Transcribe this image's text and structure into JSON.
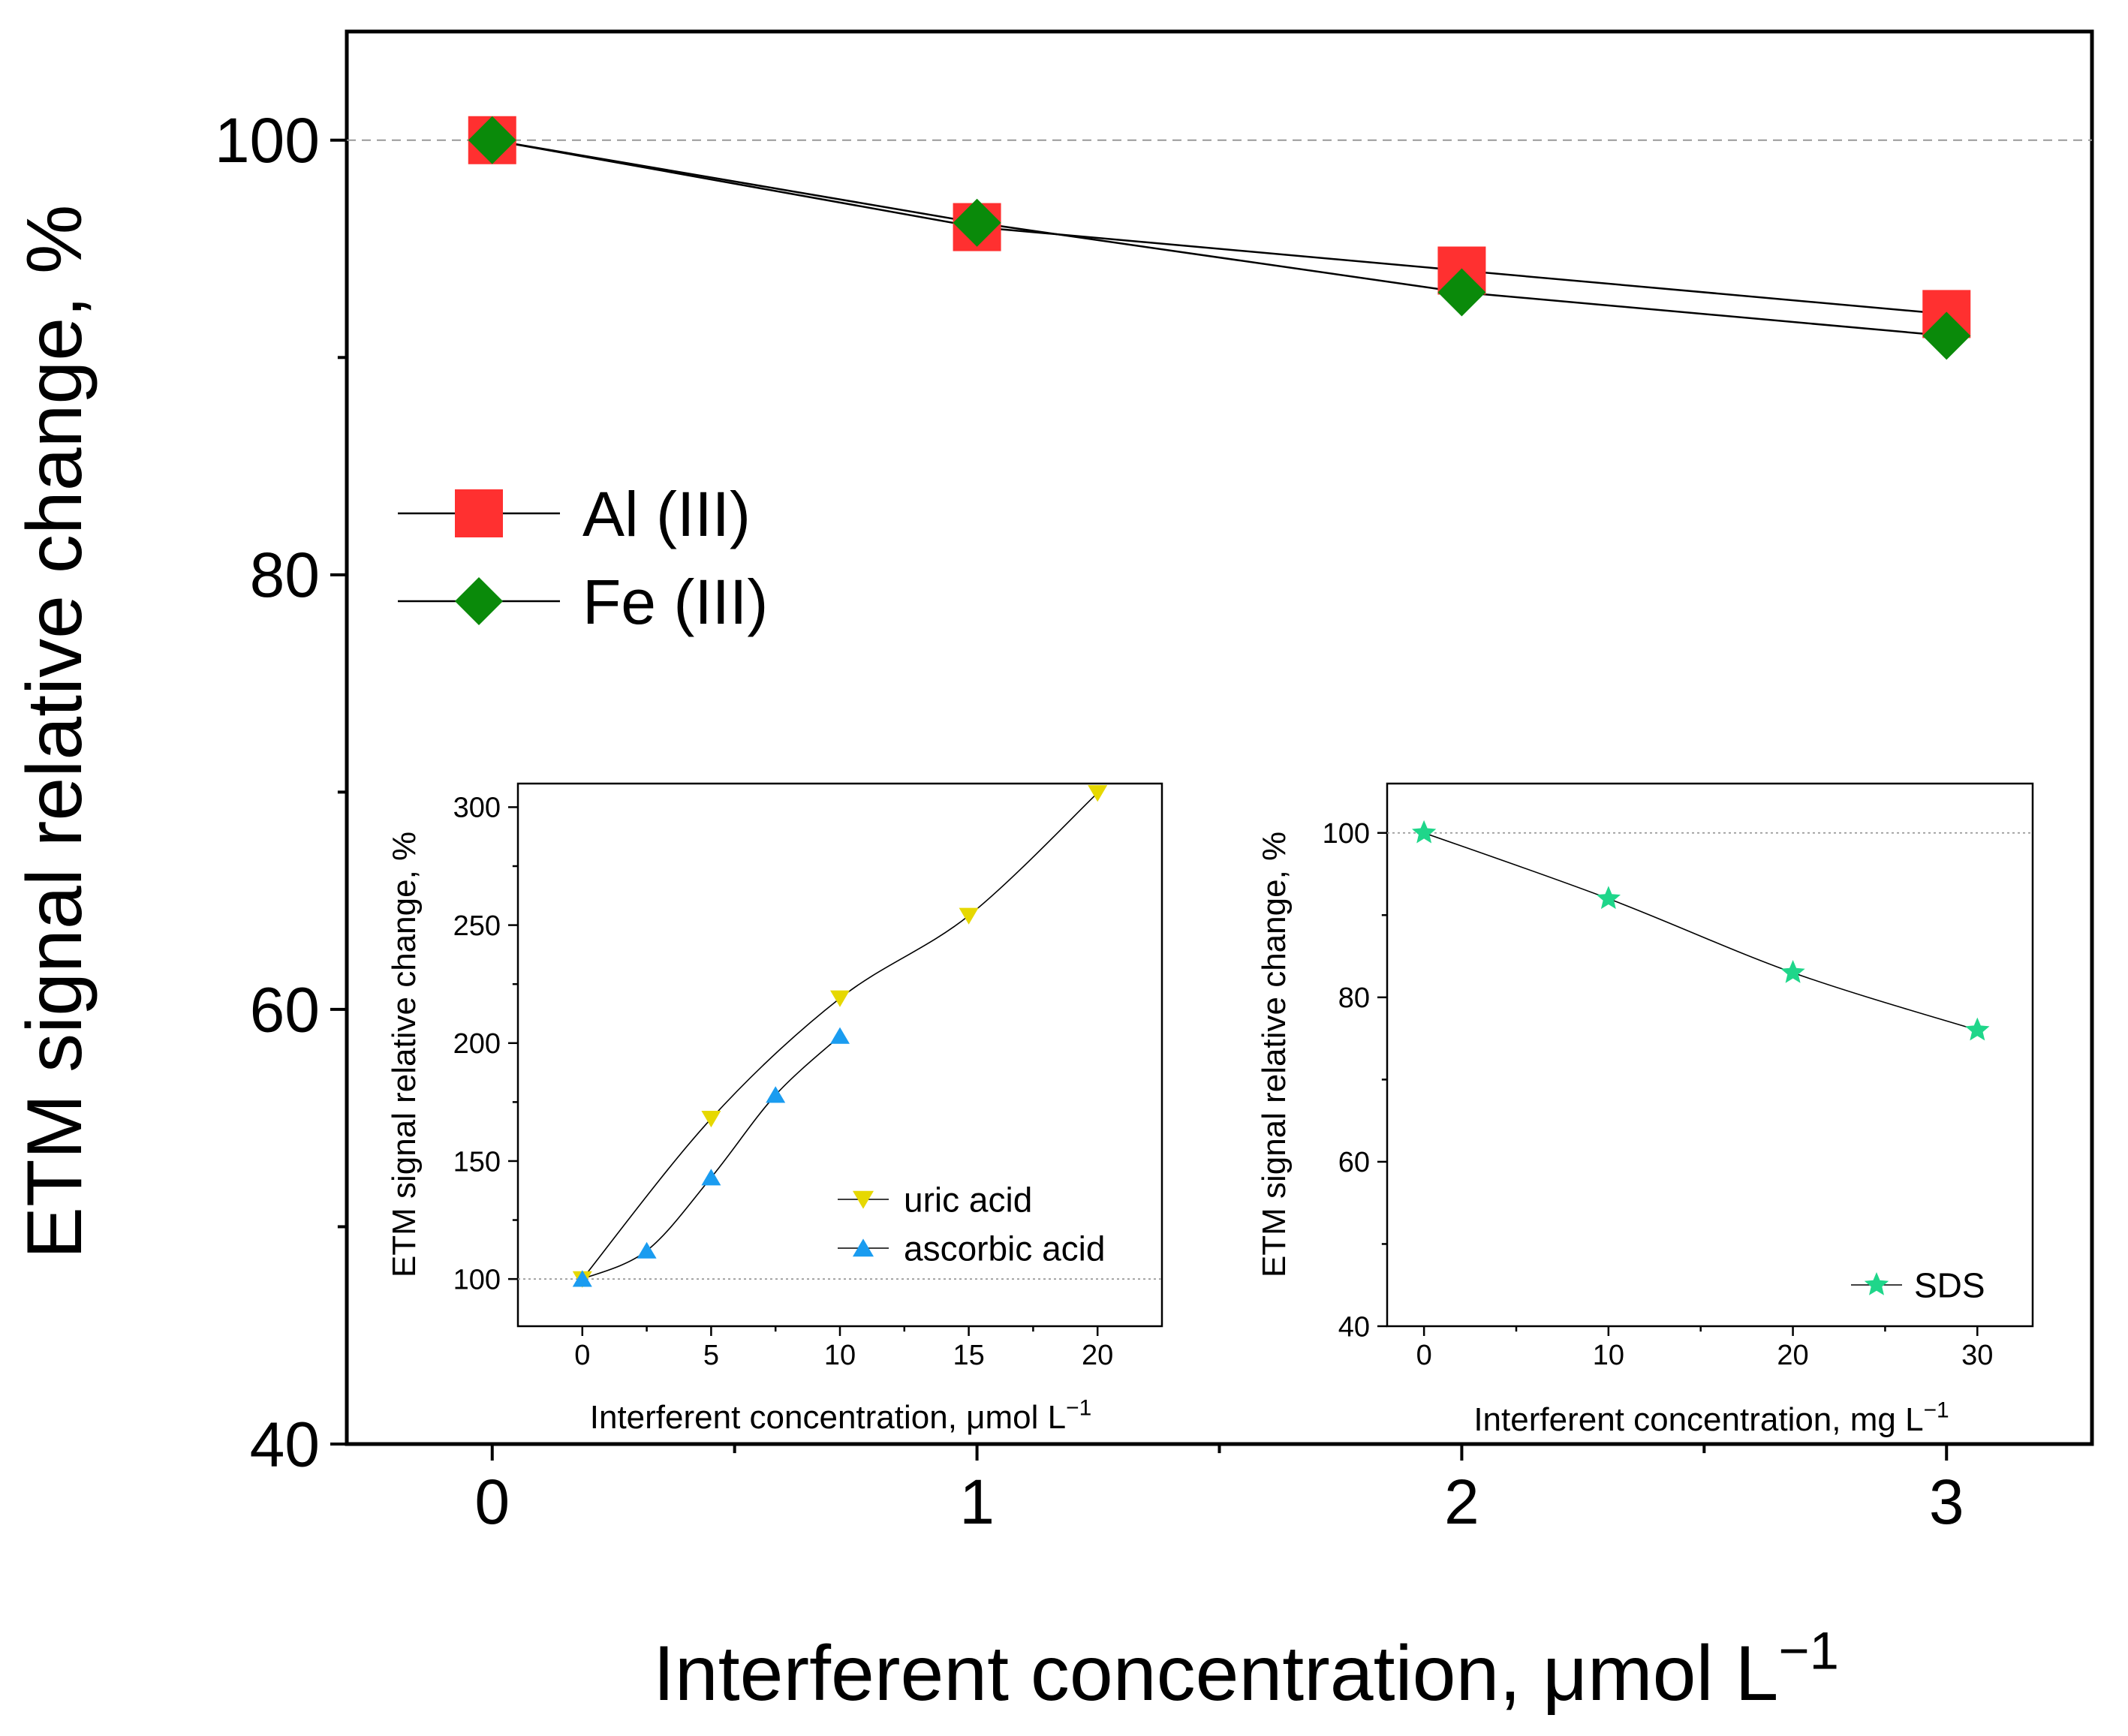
{
  "chart_data": [
    {
      "type": "line",
      "role": "main",
      "xlabel": "Interferent concentration, μmol L",
      "xlabel_sup": "−1",
      "ylabel": "ETM signal relative change, %",
      "xlim": [
        -0.3,
        3.3
      ],
      "ylim": [
        40,
        105
      ],
      "xticks": [
        0,
        1,
        2,
        3
      ],
      "xticks_minor": [
        0.5,
        1.5,
        2.5
      ],
      "yticks": [
        40,
        60,
        80,
        100
      ],
      "yticks_minor": [
        50,
        70,
        90
      ],
      "reference_line": 100,
      "legend_position": "center-left",
      "series": [
        {
          "name": "Al (III)",
          "marker": "square",
          "color": "#ff3030",
          "x": [
            0,
            1,
            2,
            3
          ],
          "values": [
            100,
            96,
            94,
            92
          ]
        },
        {
          "name": "Fe (III)",
          "marker": "diamond",
          "color": "#0a8a0a",
          "x": [
            0,
            1,
            2,
            3
          ],
          "values": [
            100,
            96.2,
            93,
            91
          ]
        }
      ]
    },
    {
      "type": "line",
      "role": "inset-left",
      "xlabel": "Interferent concentration, μmol L",
      "xlabel_sup": "−1",
      "ylabel": "ETM signal relative change, %",
      "xlim": [
        -2.5,
        22.5
      ],
      "ylim": [
        80,
        310
      ],
      "xticks": [
        0,
        5,
        10,
        15,
        20
      ],
      "xticks_minor": [
        2.5,
        7.5,
        12.5,
        17.5
      ],
      "yticks": [
        100,
        150,
        200,
        250,
        300
      ],
      "yticks_minor": [
        125,
        175,
        225,
        275
      ],
      "reference_line": 100,
      "legend_position": "bottom-right",
      "series": [
        {
          "name": "uric acid",
          "marker": "triangle-down",
          "color": "#e6d800",
          "x": [
            0,
            5,
            10,
            15,
            20
          ],
          "values": [
            100,
            168,
            219,
            254,
            306
          ]
        },
        {
          "name": "ascorbic acid",
          "marker": "triangle-up",
          "color": "#1a9cf0",
          "x": [
            0,
            2.5,
            5,
            7.5,
            10
          ],
          "values": [
            100,
            112,
            143,
            178,
            203
          ]
        }
      ]
    },
    {
      "type": "line",
      "role": "inset-right",
      "xlabel": "Interferent concentration, mg L",
      "xlabel_sup": "−1",
      "ylabel": "ETM signal relative change, %",
      "xlim": [
        -2,
        33
      ],
      "ylim": [
        40,
        106
      ],
      "xticks": [
        0,
        10,
        20,
        30
      ],
      "xticks_minor": [
        5,
        15,
        25
      ],
      "yticks": [
        40,
        60,
        80,
        100
      ],
      "yticks_minor": [
        50,
        70,
        90
      ],
      "reference_line": 100,
      "legend_position": "bottom-right",
      "series": [
        {
          "name": "SDS",
          "marker": "star",
          "color": "#1fd68a",
          "x": [
            0,
            10,
            20,
            30
          ],
          "values": [
            100,
            92,
            83,
            76
          ]
        }
      ]
    }
  ]
}
